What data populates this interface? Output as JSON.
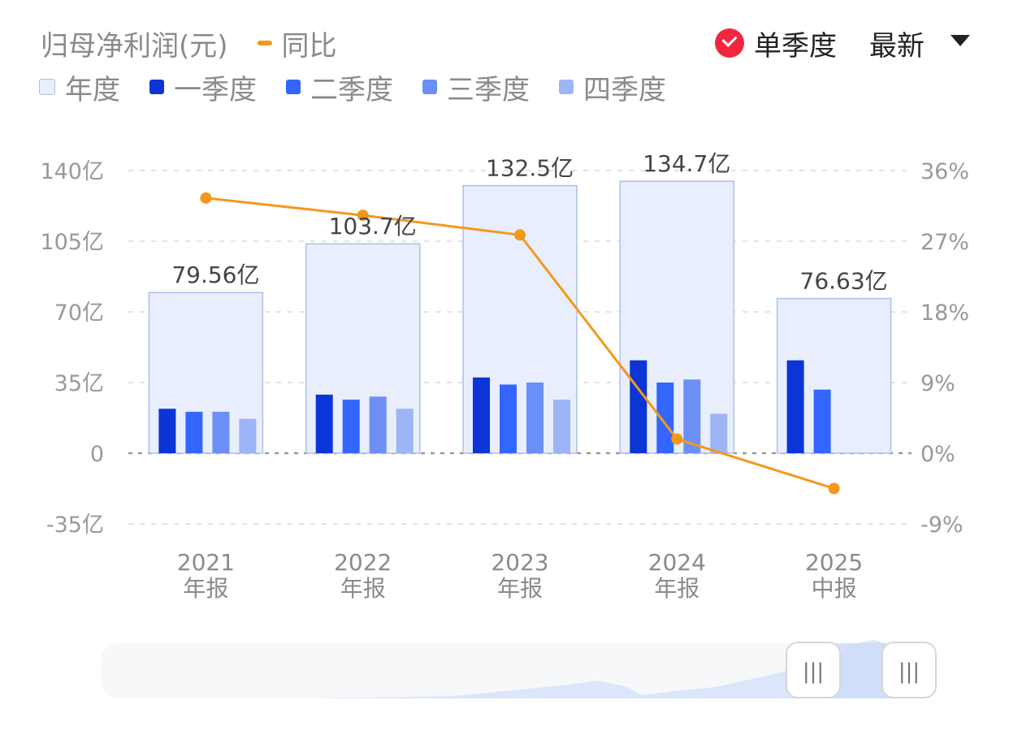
{
  "legend": {
    "primary": "归母净利润(元)",
    "yoy": "同比",
    "series": [
      {
        "label": "年度",
        "color": "#e8eefc",
        "border": "#aebfe8"
      },
      {
        "label": "一季度",
        "color": "#0b35d6"
      },
      {
        "label": "二季度",
        "color": "#3366ff"
      },
      {
        "label": "三季度",
        "color": "#6b8ff5"
      },
      {
        "label": "四季度",
        "color": "#9db4f7"
      }
    ]
  },
  "controls": {
    "single_quarter": "单季度",
    "latest": "最新"
  },
  "chart_data": {
    "type": "bar",
    "categories": [
      {
        "year": "2021",
        "kind": "年报"
      },
      {
        "year": "2022",
        "kind": "年报"
      },
      {
        "year": "2023",
        "kind": "年报"
      },
      {
        "year": "2024",
        "kind": "年报"
      },
      {
        "year": "2025",
        "kind": "中报"
      }
    ],
    "annual": {
      "values": [
        79.56,
        103.7,
        132.5,
        134.7,
        76.63
      ],
      "labels": [
        "79.56亿",
        "103.7亿",
        "132.5亿",
        "134.7亿",
        "76.63亿"
      ]
    },
    "quarters": [
      {
        "name": "一季度",
        "values": [
          22,
          29,
          37.5,
          46,
          46
        ]
      },
      {
        "name": "二季度",
        "values": [
          20.5,
          26.5,
          34,
          35,
          31.5
        ]
      },
      {
        "name": "三季度",
        "values": [
          20.5,
          28,
          35,
          36.5,
          null
        ]
      },
      {
        "name": "四季度",
        "values": [
          17,
          22,
          26.5,
          19.5,
          null
        ]
      }
    ],
    "yoy": {
      "name": "同比",
      "values": [
        32.5,
        30.3,
        27.8,
        1.8,
        -4.5
      ],
      "unit": "%"
    },
    "y_left": {
      "ticks": [
        140,
        105,
        70,
        35,
        0,
        -35
      ],
      "labels": [
        "140亿",
        "105亿",
        "70亿",
        "35亿",
        "0",
        "-35亿"
      ],
      "range": [
        -35,
        140
      ]
    },
    "y_right": {
      "ticks": [
        36,
        27,
        18,
        9,
        0,
        -9
      ],
      "labels": [
        "36%",
        "27%",
        "18%",
        "9%",
        "0%",
        "-9%"
      ],
      "range": [
        -9,
        36
      ]
    },
    "grid": true,
    "legend_position": "top-left"
  },
  "slider": {
    "handle_left": "|||",
    "handle_right": "|||"
  }
}
